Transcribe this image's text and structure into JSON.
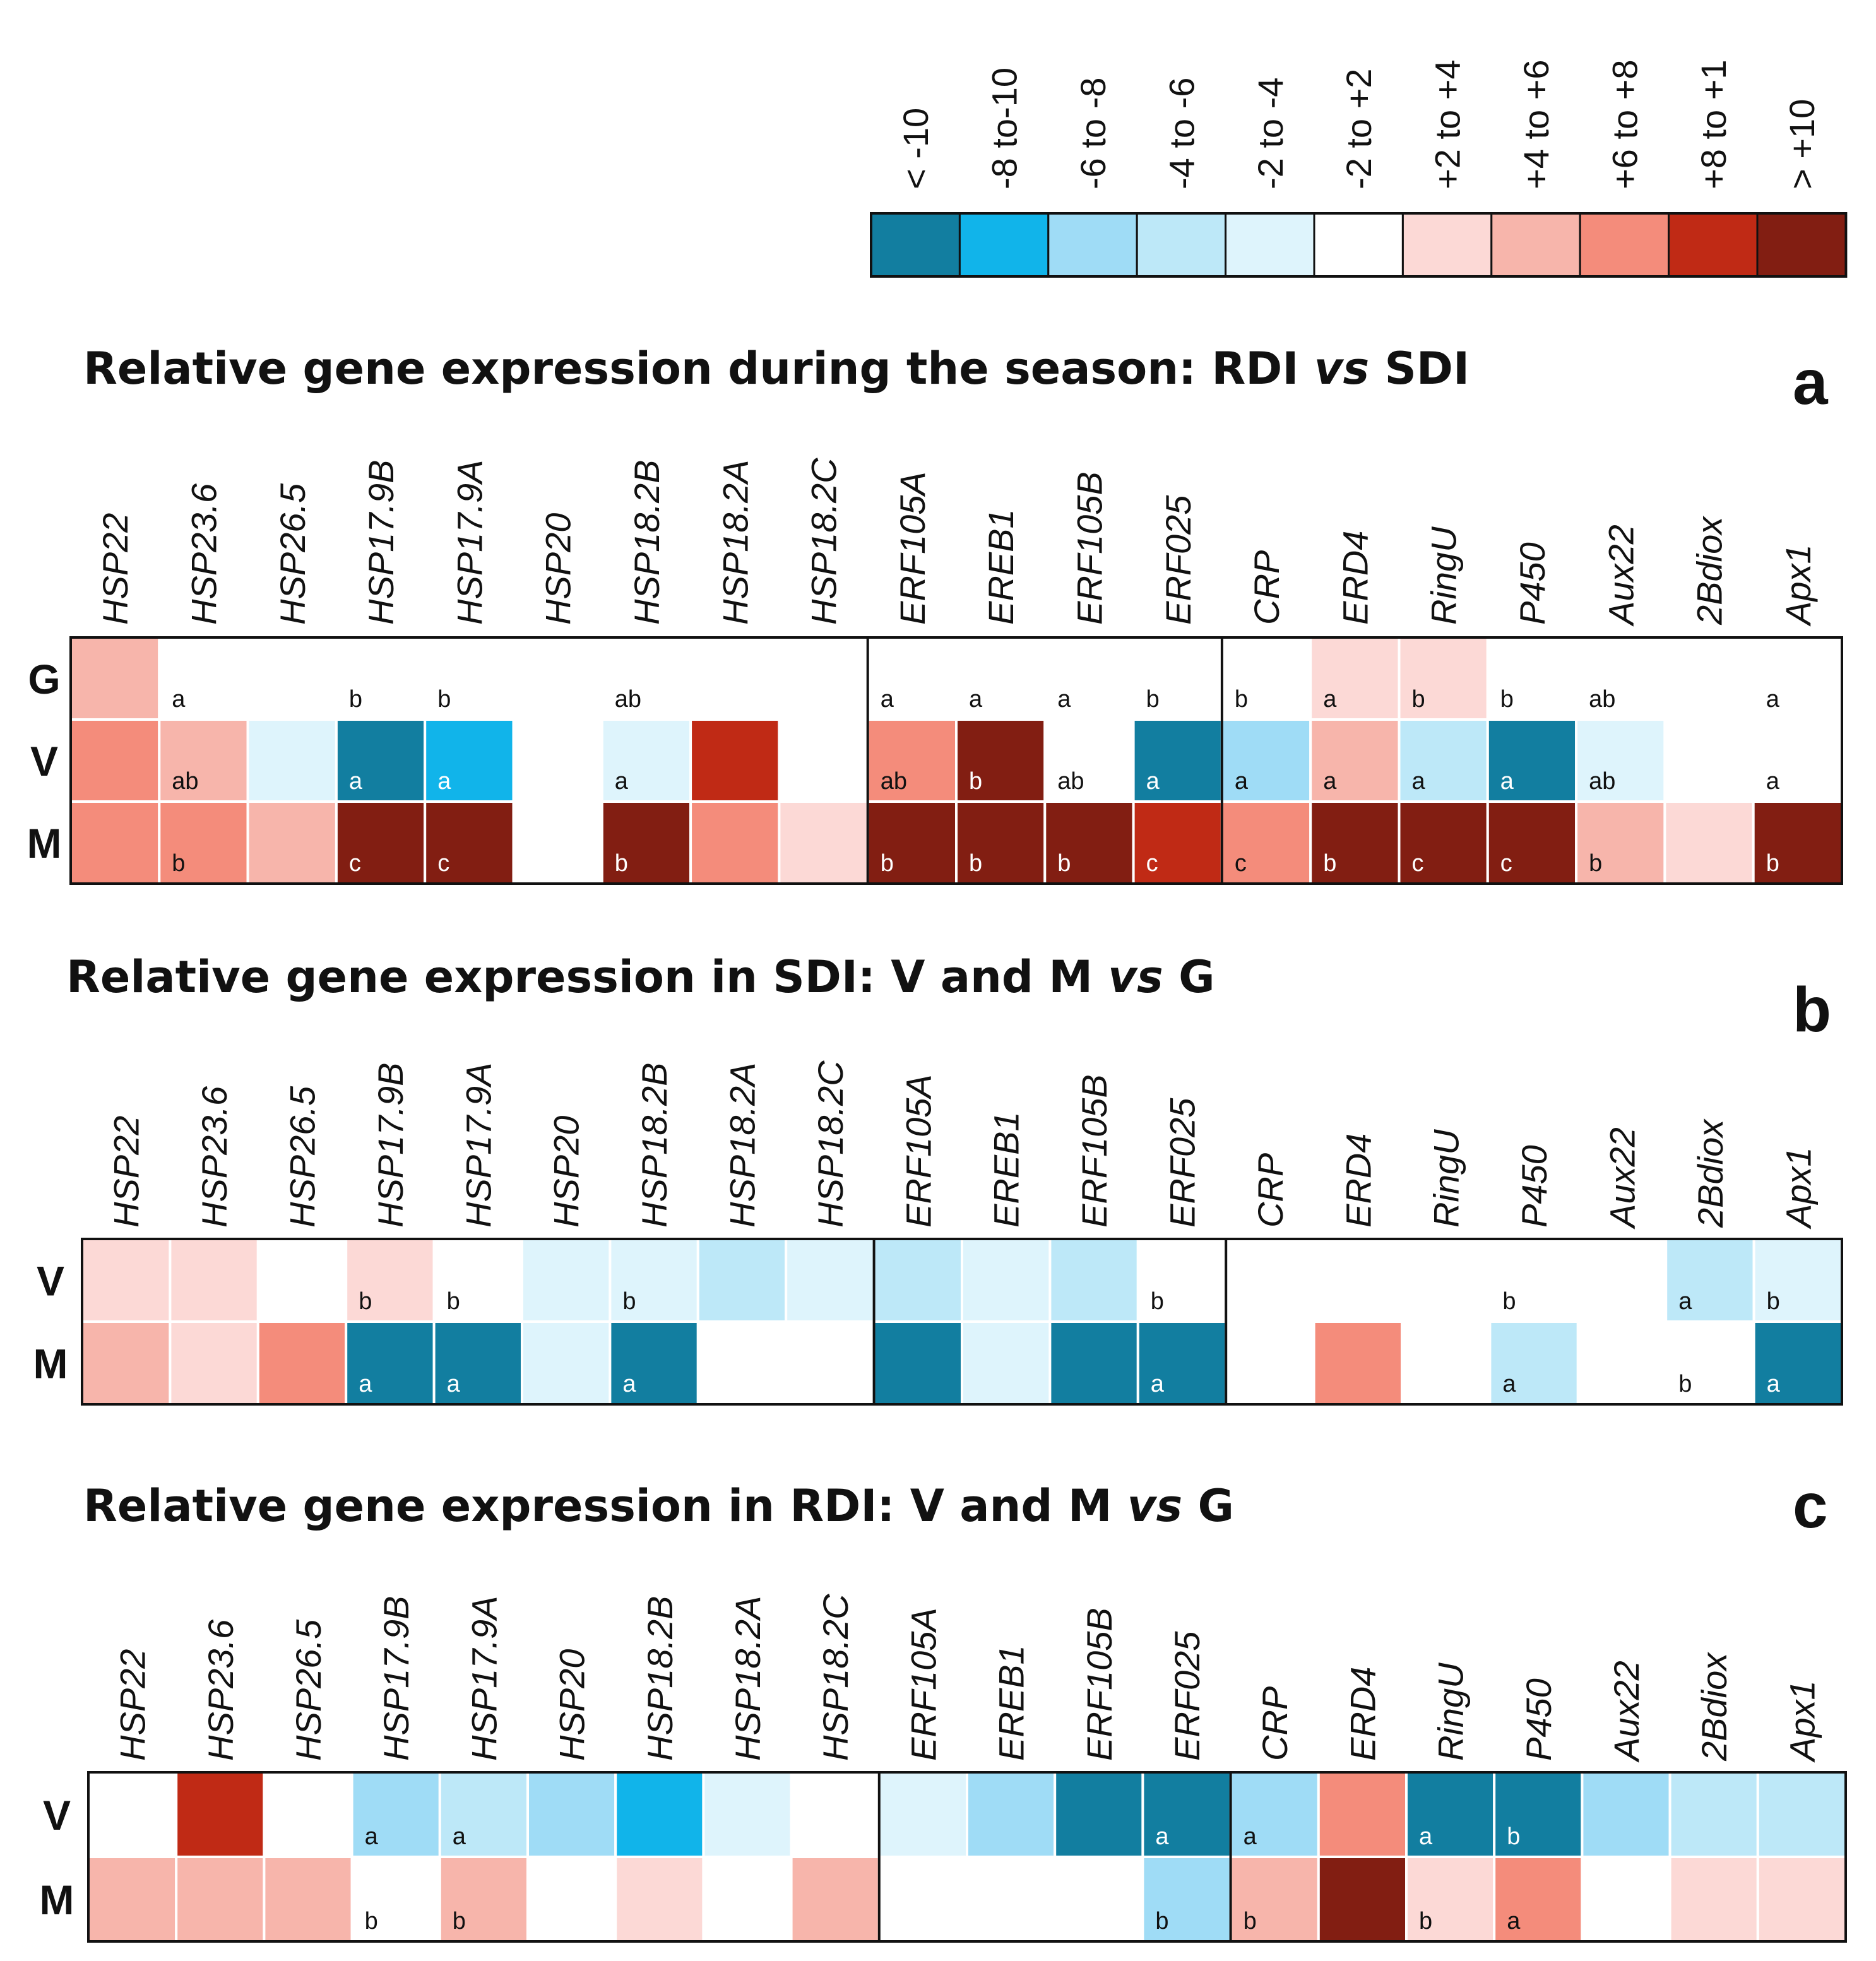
{
  "colors": {
    "lt_-10": "#127ea0",
    "-8_to_-10": "#11b4ea",
    "-6_to_-8": "#9fdcf6",
    "-4_to_-6": "#bde8f8",
    "-2_to_-4": "#def4fc",
    "-2_to_+2": "#ffffff",
    "+2_to_+4": "#fcd9d6",
    "+4_to_+6": "#f7b5ab",
    "+6_to_+8": "#f48c7b",
    "+8_to_+1": "#c02a15",
    "gt_+10": "#821e12"
  },
  "chart_data": {
    "type": "heatmap",
    "legend": {
      "labels": [
        "< -10",
        "-8 to-10",
        "-6 to -8",
        "-4 to -6",
        "-2 to -4",
        "-2 to +2",
        "+2 to +4",
        "+4 to +6",
        "+6 to +8",
        "+8 to +1",
        "> +10"
      ],
      "keys": [
        "lt_-10",
        "-8_to_-10",
        "-6_to_-8",
        "-4_to_-6",
        "-2_to_-4",
        "-2_to_+2",
        "+2_to_+4",
        "+4_to_+6",
        "+6_to_+8",
        "+8_to_+1",
        "gt_+10"
      ]
    },
    "genes": [
      "HSP22",
      "HSP23.6",
      "HSP26.5",
      "HSP17.9B",
      "HSP17.9A",
      "HSP20",
      "HSP18.2B",
      "HSP18.2A",
      "HSP18.2C",
      "ERF105A",
      "EREB1",
      "ERF105B",
      "ERF025",
      "CRP",
      "ERD4",
      "RingU",
      "P450",
      "Aux22",
      "2Bdiox",
      "Apx1"
    ],
    "gene_groups": [
      9,
      4,
      7
    ],
    "panels": [
      {
        "id": "a",
        "letter": "a",
        "title_parts": [
          "Relative gene expression during the season: RDI ",
          "vs",
          " SDI"
        ],
        "rows": [
          "G",
          "V",
          "M"
        ],
        "cells": [
          [
            "+4_to_+6",
            "-2_to_+2",
            "-2_to_+2",
            "-2_to_+2",
            "-2_to_+2",
            "-2_to_+2",
            "-2_to_+2",
            "-2_to_+2",
            "-2_to_+2",
            "-2_to_+2",
            "-2_to_+2",
            "-2_to_+2",
            "-2_to_+2",
            "-2_to_+2",
            "+2_to_+4",
            "+2_to_+4",
            "-2_to_+2",
            "-2_to_+2",
            "-2_to_+2",
            "-2_to_+2"
          ],
          [
            "+6_to_+8",
            "+4_to_+6",
            "-2_to_-4",
            "lt_-10",
            "-8_to_-10",
            "-2_to_+2",
            "-2_to_-4",
            "+8_to_+1",
            "-2_to_+2",
            "+6_to_+8",
            "gt_+10",
            "-2_to_+2",
            "lt_-10",
            "-6_to_-8",
            "+4_to_+6",
            "-4_to_-6",
            "lt_-10",
            "-2_to_-4",
            "-2_to_+2",
            "-2_to_+2"
          ],
          [
            "+6_to_+8",
            "+6_to_+8",
            "+4_to_+6",
            "gt_+10",
            "gt_+10",
            "-2_to_+2",
            "gt_+10",
            "+6_to_+8",
            "+2_to_+4",
            "gt_+10",
            "gt_+10",
            "gt_+10",
            "+8_to_+1",
            "+6_to_+8",
            "gt_+10",
            "gt_+10",
            "gt_+10",
            "+4_to_+6",
            "+2_to_+4",
            "gt_+10"
          ]
        ],
        "letters": [
          [
            "",
            "a",
            "",
            "b",
            "b",
            "",
            "ab",
            "",
            "",
            "a",
            "a",
            "a",
            "b",
            "b",
            "a",
            "b",
            "b",
            "ab",
            "",
            "a"
          ],
          [
            "",
            "ab",
            "",
            "a",
            "a",
            "",
            "a",
            "",
            "",
            "ab",
            "b",
            "ab",
            "a",
            "a",
            "a",
            "a",
            "a",
            "ab",
            "",
            "a"
          ],
          [
            "",
            "b",
            "",
            "c",
            "c",
            "",
            "b",
            "",
            "",
            "b",
            "b",
            "b",
            "c",
            "c",
            "b",
            "c",
            "c",
            "b",
            "",
            "b"
          ]
        ]
      },
      {
        "id": "b",
        "letter": "b",
        "title_parts": [
          "Relative gene expression in SDI: V and M ",
          "vs",
          " G"
        ],
        "rows": [
          "V",
          "M"
        ],
        "cells": [
          [
            "+2_to_+4",
            "+2_to_+4",
            "-2_to_+2",
            "+2_to_+4",
            "-2_to_+2",
            "-2_to_-4",
            "-2_to_-4",
            "-4_to_-6",
            "-2_to_-4",
            "-4_to_-6",
            "-2_to_-4",
            "-4_to_-6",
            "-2_to_+2",
            "-2_to_+2",
            "-2_to_+2",
            "-2_to_+2",
            "-2_to_+2",
            "-2_to_+2",
            "-4_to_-6",
            "-2_to_-4"
          ],
          [
            "+4_to_+6",
            "+2_to_+4",
            "+6_to_+8",
            "lt_-10",
            "lt_-10",
            "-2_to_-4",
            "lt_-10",
            "-2_to_+2",
            "-2_to_+2",
            "lt_-10",
            "-2_to_-4",
            "lt_-10",
            "lt_-10",
            "-2_to_+2",
            "+6_to_+8",
            "-2_to_+2",
            "-4_to_-6",
            "-2_to_+2",
            "-2_to_+2",
            "lt_-10"
          ]
        ],
        "letters": [
          [
            "",
            "",
            "",
            "b",
            "b",
            "",
            "b",
            "",
            "",
            "",
            "",
            "",
            "b",
            "",
            "",
            "",
            "b",
            "",
            "a",
            "b"
          ],
          [
            "",
            "",
            "",
            "a",
            "a",
            "",
            "a",
            "",
            "",
            "",
            "",
            "",
            "a",
            "",
            "",
            "",
            "a",
            "",
            "b",
            "a"
          ]
        ]
      },
      {
        "id": "c",
        "letter": "c",
        "title_parts": [
          "Relative gene expression in RDI: V and M ",
          "vs",
          " G"
        ],
        "rows": [
          "V",
          "M"
        ],
        "cells": [
          [
            "-2_to_+2",
            "+8_to_+1",
            "-2_to_+2",
            "-6_to_-8",
            "-4_to_-6",
            "-6_to_-8",
            "-8_to_-10",
            "-2_to_-4",
            "-2_to_+2",
            "-2_to_-4",
            "-6_to_-8",
            "lt_-10",
            "lt_-10",
            "-6_to_-8",
            "+6_to_+8",
            "lt_-10",
            "lt_-10",
            "-6_to_-8",
            "-4_to_-6",
            "-4_to_-6"
          ],
          [
            "+4_to_+6",
            "+4_to_+6",
            "+4_to_+6",
            "-2_to_+2",
            "+4_to_+6",
            "-2_to_+2",
            "+2_to_+4",
            "-2_to_+2",
            "+4_to_+6",
            "-2_to_+2",
            "-2_to_+2",
            "-2_to_+2",
            "-6_to_-8",
            "+4_to_+6",
            "gt_+10",
            "+2_to_+4",
            "+6_to_+8",
            "-2_to_+2",
            "+2_to_+4",
            "+2_to_+4"
          ]
        ],
        "letters": [
          [
            "",
            "",
            "",
            "a",
            "a",
            "",
            "",
            "",
            "",
            "",
            "",
            "",
            "a",
            "a",
            "",
            "a",
            "b",
            "",
            "",
            ""
          ],
          [
            "",
            "",
            "",
            "b",
            "b",
            "",
            "",
            "",
            "",
            "",
            "",
            "",
            "b",
            "b",
            "",
            "b",
            "a",
            "",
            "",
            ""
          ]
        ]
      }
    ]
  }
}
